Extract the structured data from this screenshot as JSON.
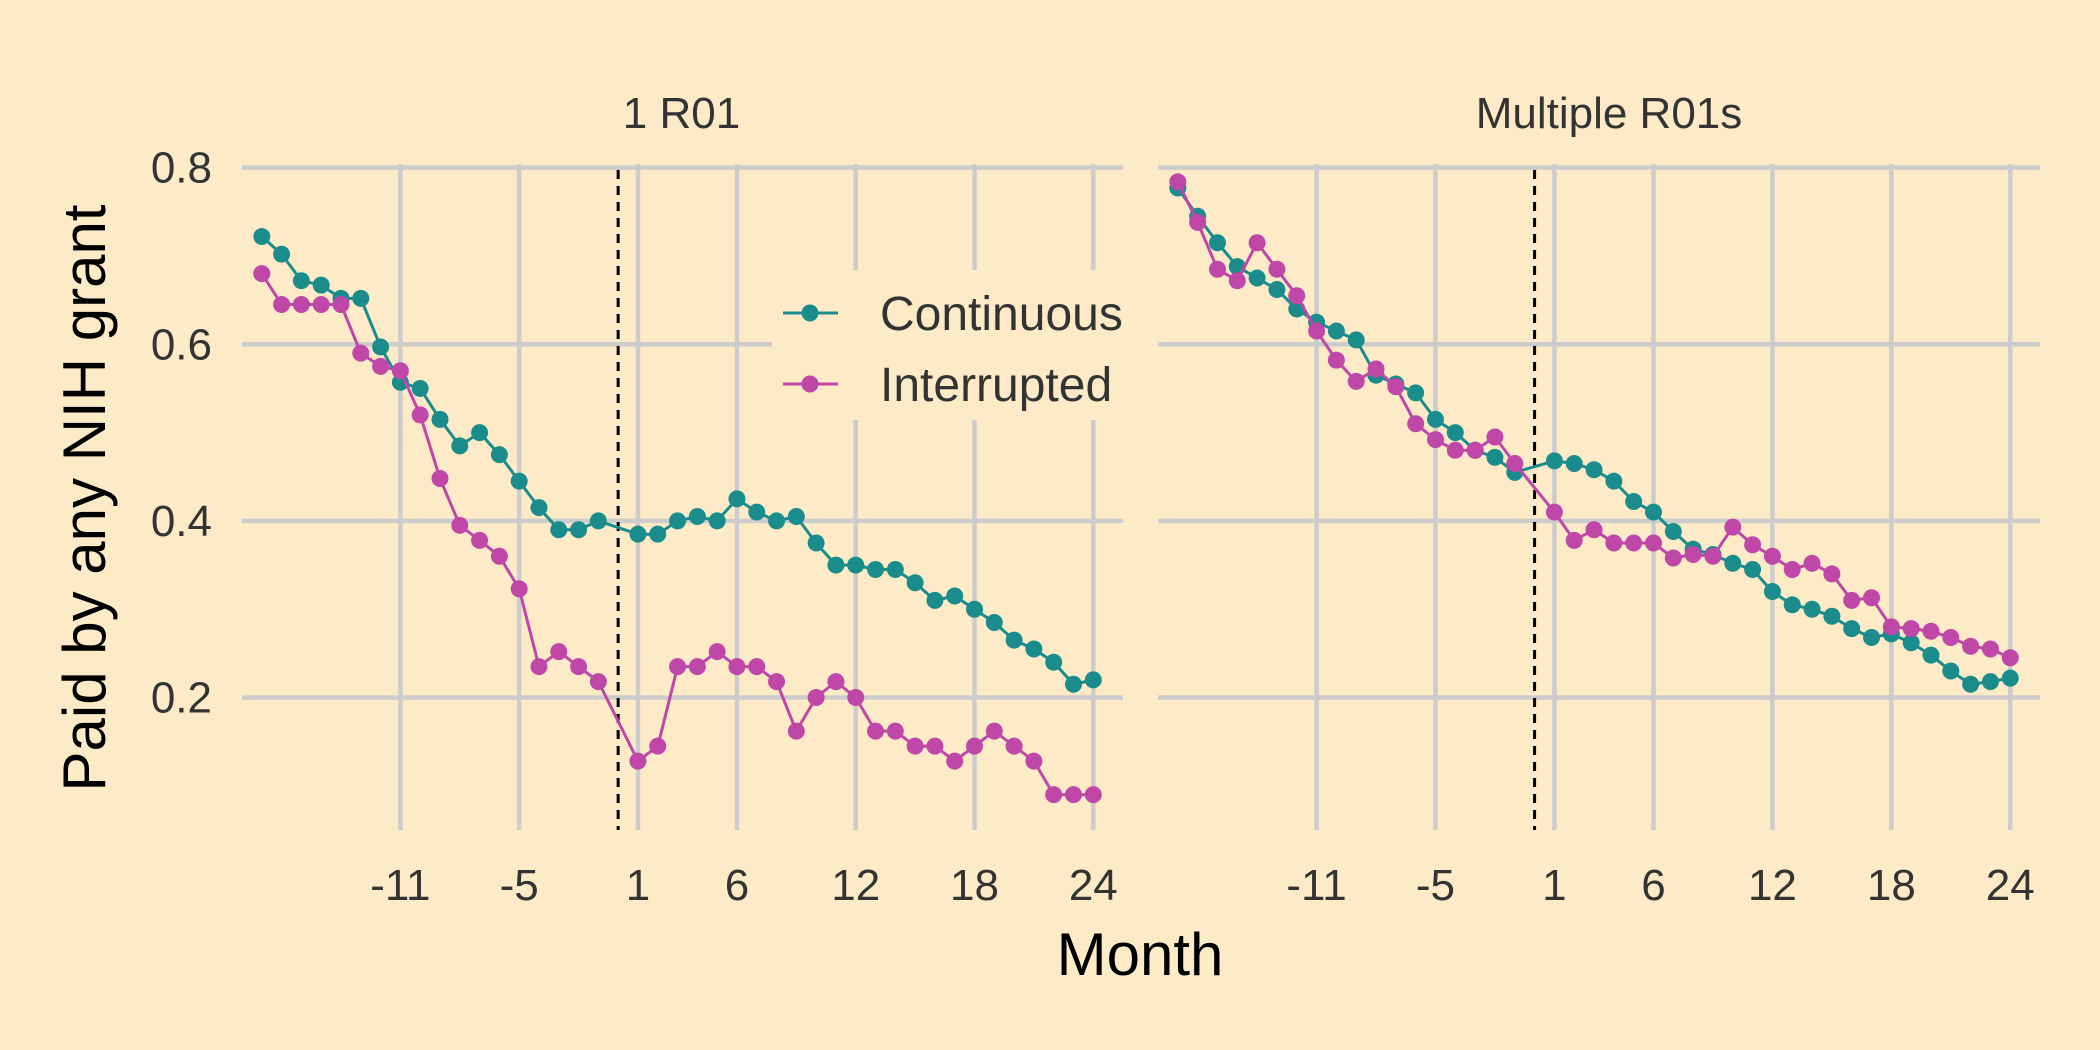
{
  "chart_data": {
    "type": "line",
    "xlabel": "Month",
    "ylabel": "Paid by any NIH grant",
    "x_ticks": [
      -11,
      -5,
      1,
      6,
      12,
      18,
      24
    ],
    "y_ticks": [
      0.2,
      0.4,
      0.6,
      0.8
    ],
    "y_tick_labels": [
      "0.2",
      "0.4",
      "0.6",
      "0.8"
    ],
    "xlim": [
      -19,
      25.5
    ],
    "ylim": [
      0.05,
      0.82
    ],
    "reference_line_x": 0,
    "grid": true,
    "legend_position": "top-right of first panel",
    "colors": {
      "background": "#FDEBC8",
      "Continuous": "#1B8C8C",
      "Interrupted": "#BE47A8",
      "grid": "#CCCCCC"
    },
    "x": [
      -18,
      -17,
      -16,
      -15,
      -14,
      -13,
      -12,
      -11,
      -10,
      -9,
      -8,
      -7,
      -6,
      -5,
      -4,
      -3,
      -2,
      -1,
      1,
      2,
      3,
      4,
      5,
      6,
      7,
      8,
      9,
      10,
      11,
      12,
      13,
      14,
      15,
      16,
      17,
      18,
      19,
      20,
      21,
      22,
      23,
      24
    ],
    "panels": [
      {
        "title": "1 R01",
        "series": [
          {
            "name": "Continuous",
            "values": [
              0.722,
              0.702,
              0.672,
              0.667,
              0.652,
              0.652,
              0.597,
              0.557,
              0.55,
              0.515,
              0.485,
              0.5,
              0.475,
              0.445,
              0.415,
              0.39,
              0.39,
              0.4,
              0.385,
              0.385,
              0.4,
              0.405,
              0.4,
              0.425,
              0.41,
              0.4,
              0.405,
              0.375,
              0.35,
              0.35,
              0.345,
              0.345,
              0.33,
              0.31,
              0.315,
              0.3,
              0.285,
              0.265,
              0.255,
              0.24,
              0.215,
              0.22
            ]
          },
          {
            "name": "Interrupted",
            "values": [
              0.68,
              0.645,
              0.645,
              0.645,
              0.645,
              0.59,
              0.575,
              0.57,
              0.52,
              0.448,
              0.395,
              0.378,
              0.36,
              0.323,
              0.235,
              0.252,
              0.235,
              0.218,
              0.128,
              0.145,
              0.235,
              0.235,
              0.252,
              0.235,
              0.235,
              0.218,
              0.162,
              0.2,
              0.218,
              0.2,
              0.162,
              0.162,
              0.145,
              0.145,
              0.128,
              0.145,
              0.162,
              0.145,
              0.128,
              0.09,
              0.09,
              0.09
            ]
          }
        ]
      },
      {
        "title": "Multiple R01s",
        "series": [
          {
            "name": "Continuous",
            "values": [
              0.777,
              0.745,
              0.715,
              0.688,
              0.675,
              0.662,
              0.64,
              0.625,
              0.615,
              0.605,
              0.565,
              0.555,
              0.545,
              0.515,
              0.5,
              0.48,
              0.472,
              0.455,
              0.468,
              0.465,
              0.458,
              0.445,
              0.422,
              0.41,
              0.388,
              0.368,
              0.362,
              0.352,
              0.345,
              0.32,
              0.305,
              0.3,
              0.292,
              0.278,
              0.268,
              0.272,
              0.262,
              0.248,
              0.23,
              0.215,
              0.218,
              0.222
            ]
          },
          {
            "name": "Interrupted",
            "values": [
              0.784,
              0.738,
              0.685,
              0.672,
              0.715,
              0.685,
              0.655,
              0.615,
              0.582,
              0.558,
              0.572,
              0.552,
              0.51,
              0.492,
              0.48,
              0.48,
              0.495,
              0.465,
              0.41,
              0.378,
              0.39,
              0.375,
              0.375,
              0.375,
              0.358,
              0.362,
              0.36,
              0.393,
              0.373,
              0.36,
              0.345,
              0.352,
              0.34,
              0.31,
              0.313,
              0.28,
              0.278,
              0.275,
              0.268,
              0.258,
              0.255,
              0.245
            ]
          }
        ]
      }
    ]
  }
}
